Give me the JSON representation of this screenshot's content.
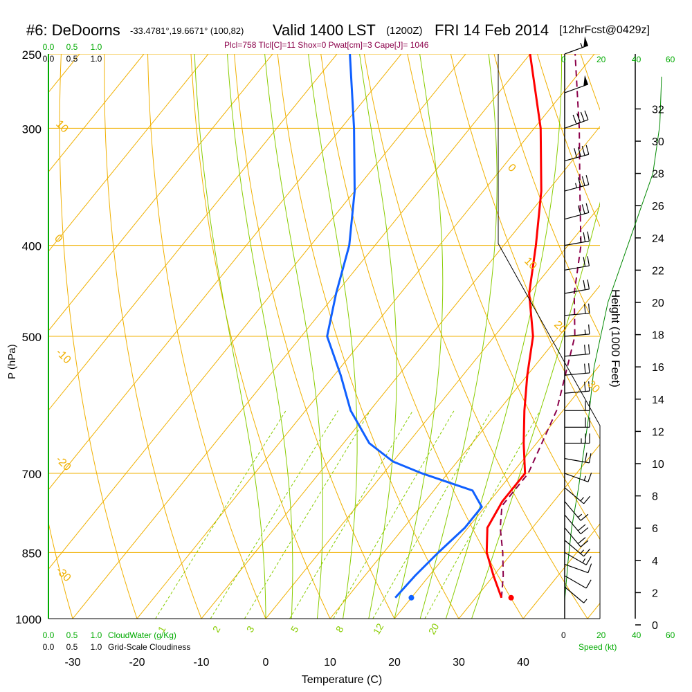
{
  "header": {
    "station": "#6: DeDoorns",
    "coords": "-33.4781°,19.6671° (100,82)",
    "valid": "Valid 1400 LST",
    "zulu": "(1200Z)",
    "date": "FRI 14 Feb 2014",
    "forecast": "[12hrFcst@0429z]",
    "parcel_params": "Plcl=758 Tlcl[C]=11 Shox=0 Pwat[cm]=3 Cape[J]= 1046"
  },
  "colors": {
    "isotherm": "#f0b000",
    "dry_adiabat": "#f0b000",
    "moist_adiabat": "#88cc00",
    "mixing_ratio": "#88cc00",
    "temperature": "#ff0000",
    "dewpoint": "#1060ff",
    "parcel": "#8b004a",
    "height_profile": "#008800",
    "scale_green": "#00aa00"
  },
  "chart_data": {
    "type": "line",
    "xlabel": "Temperature (C)",
    "ylabel": "P (hPa)",
    "y2label": "Height (1000 Feet)",
    "x_ticks": [
      "-30",
      "-20",
      "-10",
      "0",
      "10",
      "20",
      "30",
      "40"
    ],
    "y_ticks": [
      "250",
      "300",
      "400",
      "500",
      "700",
      "850",
      "1000"
    ],
    "height_ticks": [
      "0",
      "2",
      "4",
      "6",
      "8",
      "10",
      "12",
      "14",
      "16",
      "18",
      "20",
      "22",
      "24",
      "26",
      "28",
      "30",
      "32"
    ],
    "dry_adiabat_labels": [
      "10",
      "0",
      "-10",
      "-20",
      "-30",
      "0",
      "10",
      "20",
      "30"
    ],
    "mixing_ratio_labels": [
      "1",
      "2",
      "3",
      "5",
      "8",
      "12",
      "20"
    ],
    "cloud_scale_top": [
      "0.0",
      "0.5",
      "1.0"
    ],
    "cloudiness_scale_top": [
      "0.0",
      "0.5",
      "1.0"
    ],
    "cloud_scale_bottom": [
      "0.0",
      "0.5",
      "1.0"
    ],
    "cloudiness_scale_bottom": [
      "0.0",
      "0.5",
      "1.0"
    ],
    "cloud_water_label": "CloudWater (g/Kg)",
    "cloudiness_label": "Grid-Scale Cloudiness",
    "wind_speed_ticks_top": [
      "0",
      "20",
      "40"
    ],
    "wind_speed_ticks_bottom": [
      "0",
      "20",
      "40"
    ],
    "height_scale_ticks": [
      "60",
      "60"
    ],
    "speed_label": "Speed (kt)",
    "temperature": [
      {
        "p": 950,
        "t": 34
      },
      {
        "p": 900,
        "t": 30
      },
      {
        "p": 850,
        "t": 26
      },
      {
        "p": 800,
        "t": 23
      },
      {
        "p": 750,
        "t": 22
      },
      {
        "p": 700,
        "t": 22
      },
      {
        "p": 650,
        "t": 18
      },
      {
        "p": 600,
        "t": 14
      },
      {
        "p": 550,
        "t": 10
      },
      {
        "p": 500,
        "t": 6
      },
      {
        "p": 450,
        "t": 0
      },
      {
        "p": 400,
        "t": -5
      },
      {
        "p": 350,
        "t": -11
      },
      {
        "p": 300,
        "t": -19
      },
      {
        "p": 250,
        "t": -30
      }
    ],
    "dewpoint": [
      {
        "p": 950,
        "t": 17.5
      },
      {
        "p": 900,
        "t": 17.8
      },
      {
        "p": 850,
        "t": 18.5
      },
      {
        "p": 800,
        "t": 19.5
      },
      {
        "p": 760,
        "t": 19.5
      },
      {
        "p": 730,
        "t": 16
      },
      {
        "p": 700,
        "t": 6
      },
      {
        "p": 680,
        "t": 0
      },
      {
        "p": 650,
        "t": -6
      },
      {
        "p": 600,
        "t": -13
      },
      {
        "p": 550,
        "t": -19
      },
      {
        "p": 500,
        "t": -26
      },
      {
        "p": 450,
        "t": -30
      },
      {
        "p": 400,
        "t": -34
      },
      {
        "p": 350,
        "t": -40
      },
      {
        "p": 300,
        "t": -48
      },
      {
        "p": 250,
        "t": -58
      }
    ],
    "parcel": [
      {
        "p": 950,
        "t": 34
      },
      {
        "p": 900,
        "t": 31.5
      },
      {
        "p": 850,
        "t": 28.5
      },
      {
        "p": 800,
        "t": 25
      },
      {
        "p": 758,
        "t": 22.5
      },
      {
        "p": 700,
        "t": 22.5
      },
      {
        "p": 600,
        "t": 19
      },
      {
        "p": 500,
        "t": 12.5
      },
      {
        "p": 450,
        "t": 7
      },
      {
        "p": 400,
        "t": 2
      },
      {
        "p": 350,
        "t": -5
      },
      {
        "p": 300,
        "t": -13
      },
      {
        "p": 250,
        "t": -23
      }
    ],
    "surface_temp_marker": {
      "p": 950,
      "t": 35.5
    },
    "surface_dewpoint_marker": {
      "p": 950,
      "t": 20
    },
    "height_profile": [
      {
        "h": 1.5,
        "spd": 0
      },
      {
        "h": 4,
        "spd": 2
      },
      {
        "h": 6,
        "spd": 4
      },
      {
        "h": 8.5,
        "spd": 8
      },
      {
        "h": 10,
        "spd": 10
      },
      {
        "h": 13,
        "spd": 14
      },
      {
        "h": 16,
        "spd": 17
      },
      {
        "h": 20,
        "spd": 25
      },
      {
        "h": 24,
        "spd": 38
      },
      {
        "h": 28,
        "spd": 51
      },
      {
        "h": 31,
        "spd": 55
      },
      {
        "h": 34,
        "spd": 56
      }
    ],
    "wind_barbs": [
      {
        "p": 250,
        "dir": 250,
        "spd": 55
      },
      {
        "p": 275,
        "dir": 250,
        "spd": 50
      },
      {
        "p": 300,
        "dir": 250,
        "spd": 40
      },
      {
        "p": 325,
        "dir": 255,
        "spd": 40
      },
      {
        "p": 350,
        "dir": 255,
        "spd": 35
      },
      {
        "p": 375,
        "dir": 255,
        "spd": 30
      },
      {
        "p": 400,
        "dir": 260,
        "spd": 25
      },
      {
        "p": 425,
        "dir": 260,
        "spd": 20
      },
      {
        "p": 450,
        "dir": 260,
        "spd": 20
      },
      {
        "p": 475,
        "dir": 265,
        "spd": 20
      },
      {
        "p": 500,
        "dir": 265,
        "spd": 15
      },
      {
        "p": 525,
        "dir": 265,
        "spd": 20
      },
      {
        "p": 550,
        "dir": 265,
        "spd": 20
      },
      {
        "p": 575,
        "dir": 265,
        "spd": 20
      },
      {
        "p": 600,
        "dir": 270,
        "spd": 20
      },
      {
        "p": 625,
        "dir": 270,
        "spd": 20
      },
      {
        "p": 650,
        "dir": 270,
        "spd": 25
      },
      {
        "p": 675,
        "dir": 280,
        "spd": 20
      },
      {
        "p": 700,
        "dir": 290,
        "spd": 15
      },
      {
        "p": 725,
        "dir": 310,
        "spd": 15
      },
      {
        "p": 750,
        "dir": 320,
        "spd": 15
      },
      {
        "p": 775,
        "dir": 320,
        "spd": 20
      },
      {
        "p": 800,
        "dir": 320,
        "spd": 20
      },
      {
        "p": 825,
        "dir": 310,
        "spd": 15
      },
      {
        "p": 850,
        "dir": 300,
        "spd": 15
      },
      {
        "p": 875,
        "dir": 290,
        "spd": 10
      },
      {
        "p": 900,
        "dir": 300,
        "spd": 10
      },
      {
        "p": 925,
        "dir": 310,
        "spd": 5
      }
    ]
  }
}
